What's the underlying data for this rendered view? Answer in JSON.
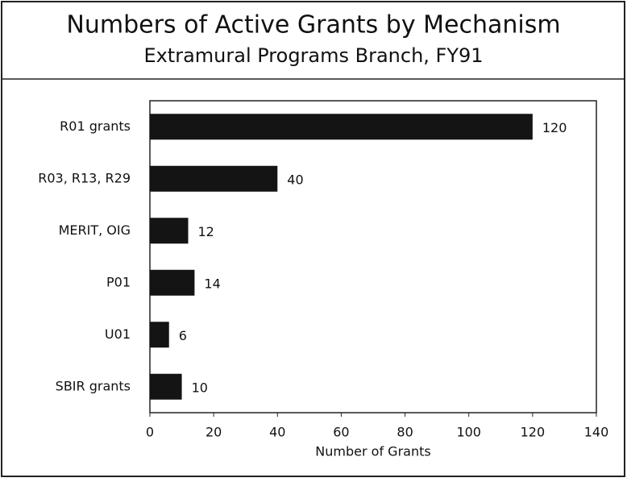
{
  "chart_data": {
    "type": "bar",
    "orientation": "horizontal",
    "title": "Numbers of Active Grants by Mechanism",
    "subtitle": "Extramural Programs Branch, FY91",
    "categories": [
      "R01 grants",
      "R03, R13, R29",
      "MERIT, OIG",
      "P01",
      "U01",
      "SBIR grants"
    ],
    "values": [
      120,
      40,
      12,
      14,
      6,
      10
    ],
    "color": "#141414",
    "xlabel": "Number of Grants",
    "xlim": [
      0,
      140
    ],
    "xticks": [
      0,
      20,
      40,
      60,
      80,
      100,
      120,
      140
    ]
  }
}
